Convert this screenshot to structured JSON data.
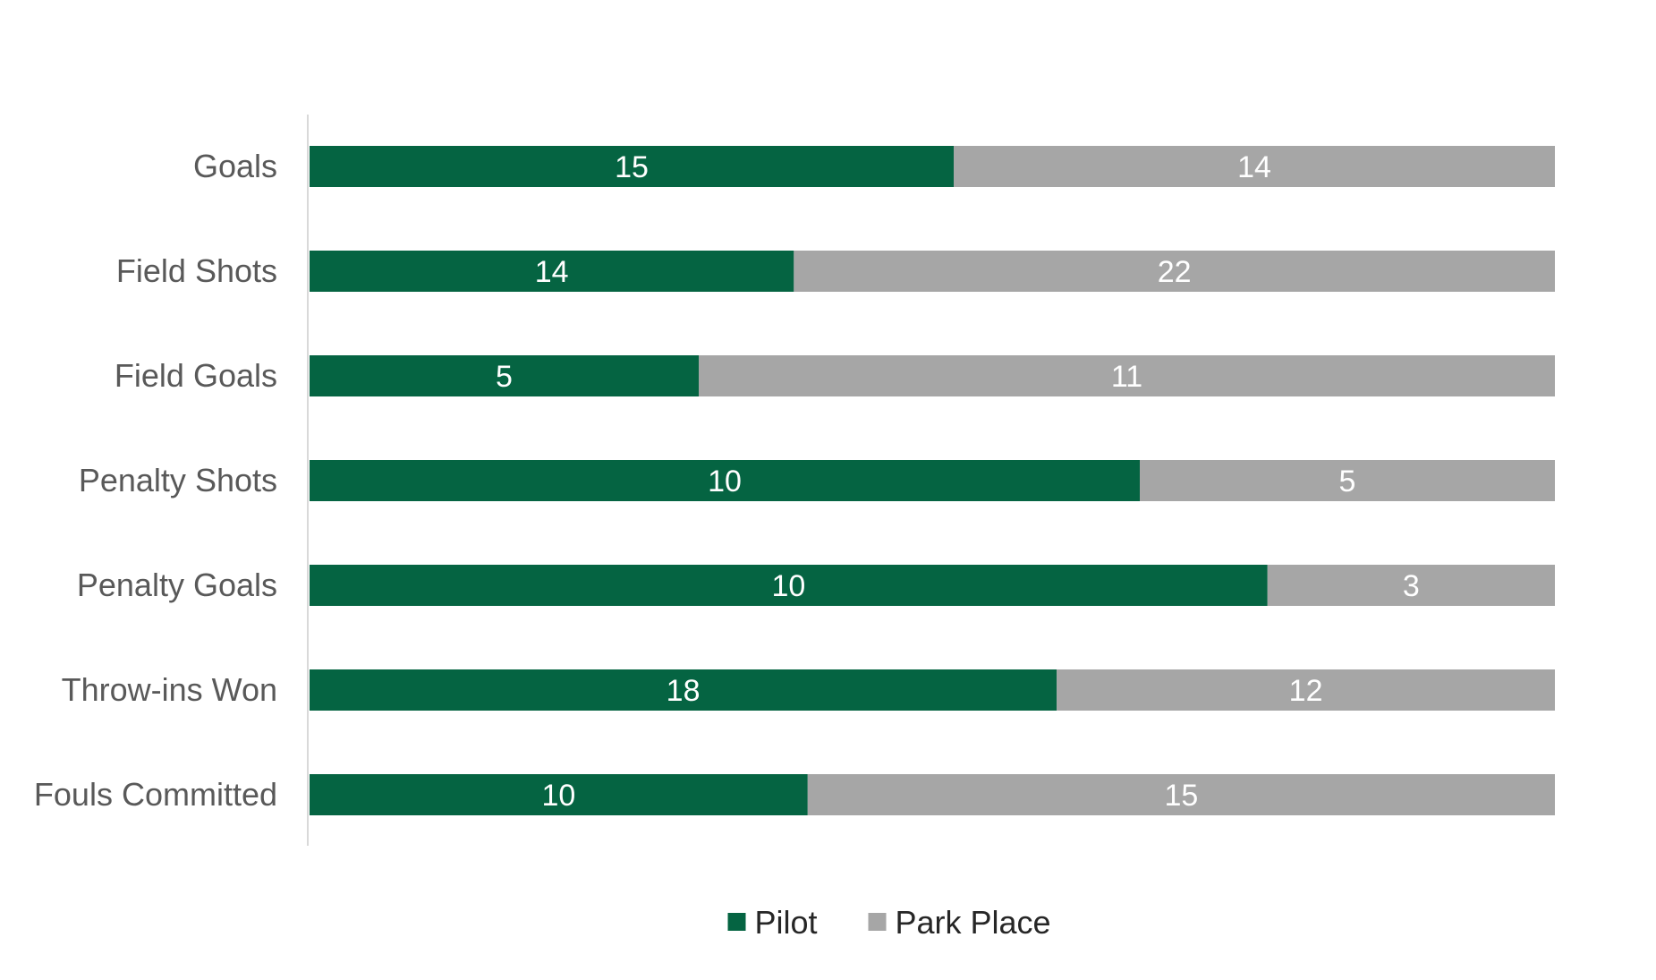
{
  "chart_data": {
    "type": "bar",
    "orientation": "horizontal",
    "stacking": "percent",
    "categories": [
      "Goals",
      "Field Shots",
      "Field Goals",
      "Penalty Shots",
      "Penalty Goals",
      "Throw-ins Won",
      "Fouls Committed"
    ],
    "series": [
      {
        "name": "Pilot",
        "color": "#056442",
        "values": [
          15,
          14,
          5,
          10,
          10,
          18,
          10
        ]
      },
      {
        "name": "Park Place",
        "color": "#A6A6A6",
        "values": [
          14,
          22,
          11,
          5,
          3,
          12,
          15
        ]
      }
    ],
    "data_labels": true,
    "legend_position": "bottom",
    "grid": false,
    "title": "",
    "xlabel": "",
    "ylabel": ""
  }
}
